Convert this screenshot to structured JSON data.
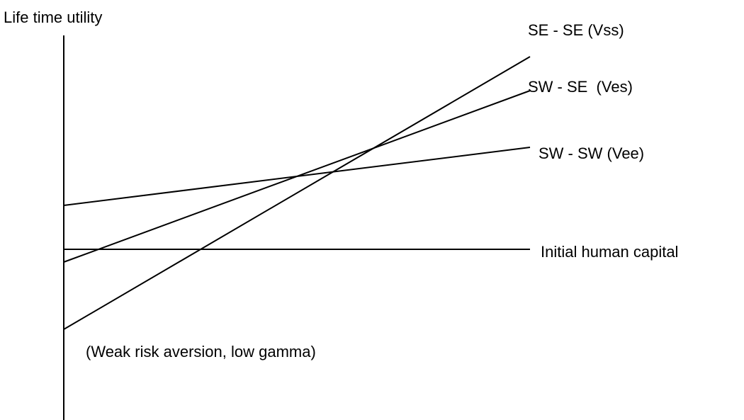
{
  "axis_label": "Life time utility",
  "lines": [
    {
      "label": "SE - SE (Vss)"
    },
    {
      "label": "SW - SE  (Ves)"
    },
    {
      "label": "SW - SW (Vee)"
    },
    {
      "label": "Initial human capital"
    }
  ],
  "note": "(Weak risk aversion, low gamma)"
}
